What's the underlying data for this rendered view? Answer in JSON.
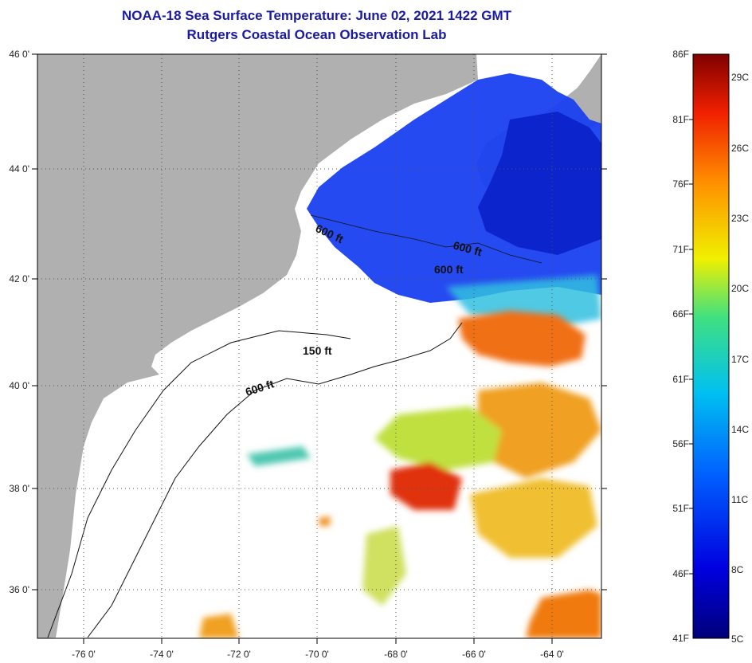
{
  "title": "NOAA-18 Sea Surface Temperature:  June 02, 2021 1422 GMT",
  "subtitle": "Rutgers Coastal Ocean Observation Lab",
  "lat_ticks": [
    "46 0'",
    "44 0'",
    "42 0'",
    "40 0'",
    "38 0'",
    "36 0'"
  ],
  "lon_ticks": [
    "-76 0'",
    "-74 0'",
    "-72 0'",
    "-70 0'",
    "-68 0'",
    "-66 0'",
    "-64 0'"
  ],
  "contour_labels": [
    "600 ft",
    "600 ft",
    "600 ft",
    "150 ft",
    "600 ft"
  ],
  "colorbar": {
    "fahrenheit": [
      "86F",
      "81F",
      "76F",
      "71F",
      "66F",
      "61F",
      "56F",
      "51F",
      "46F",
      "41F"
    ],
    "celsius": [
      "29C",
      "26C",
      "23C",
      "20C",
      "17C",
      "14C",
      "11C",
      "8C",
      "5C"
    ]
  },
  "colors": {
    "land": "#b0b0b0",
    "title": "#1a1aa6",
    "cold": "#0a30e0",
    "warm": "#e06018",
    "no_data": "#ffffff"
  }
}
